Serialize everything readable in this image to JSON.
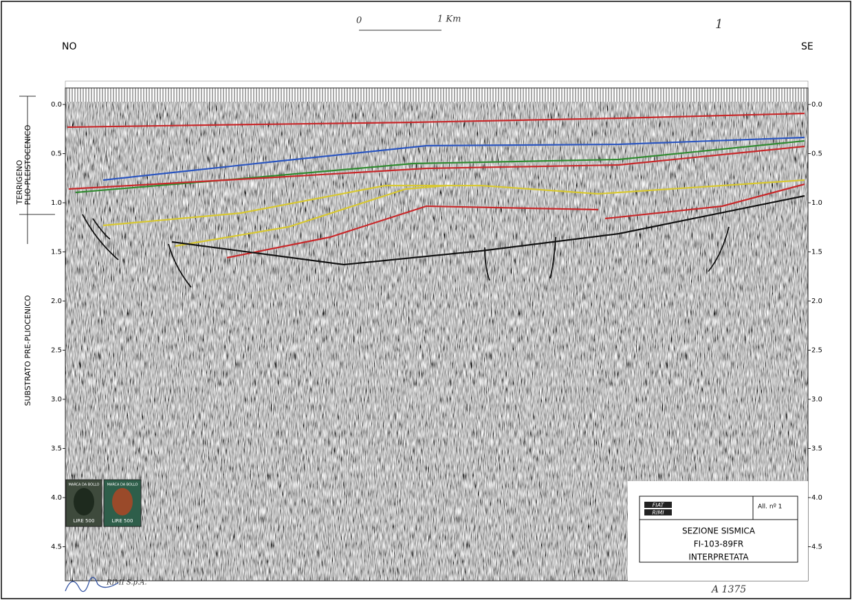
{
  "header": {
    "left_direction": "NO",
    "right_direction": "SE",
    "scale_start": "0",
    "scale_end": "1 Km",
    "sheet_number": "1"
  },
  "time_labels": [
    "0.0",
    "0.5",
    "1.0",
    "1.5",
    "2.0",
    "2.5",
    "3.0",
    "3.5",
    "4.0",
    "4.5"
  ],
  "side_labels": {
    "upper_line1": "TERRIGENO",
    "upper_line2": "PLIO-PLEISTOCENICO",
    "lower": "SUBSTRATO PRE-PLIOCENICO"
  },
  "stamps": [
    {
      "top": "MARCA DA BOLLO",
      "bottom": "LIRE 500"
    },
    {
      "top": "MARCA DA BOLLO",
      "bottom": "LIRE 500"
    }
  ],
  "title_block": {
    "logo_line1": "FIAT",
    "logo_line2": "RIMI",
    "attachment": "All. nº 1",
    "line1": "SEZIONE SISMICA",
    "line2": "FI-103-89FR",
    "line3": "INTERPRETATA"
  },
  "footer": {
    "archive_number": "A 1375",
    "signature": "RIMI S.p.A."
  }
}
